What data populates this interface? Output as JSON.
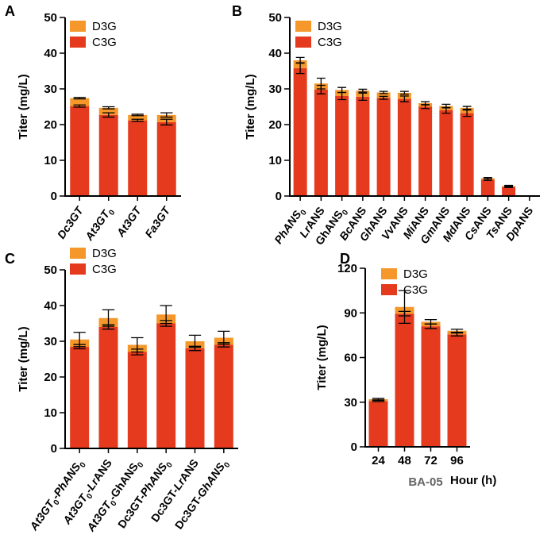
{
  "colors": {
    "c3g": "#E63A1E",
    "d3g": "#F5972A",
    "axis": "#000000"
  },
  "legend": {
    "d3g": "D3G",
    "c3g": "C3G"
  },
  "chart_data": [
    {
      "panel": "A",
      "type": "bar",
      "stacked": true,
      "ylabel": "Titer (mg/L)",
      "ylim": [
        0,
        50
      ],
      "yticks": [
        "0",
        "10",
        "20",
        "30",
        "40",
        "50"
      ],
      "legend_position": "top-left",
      "categories": [
        {
          "label": "Dc3GT",
          "parts": [
            {
              "t": "Dc3GT",
              "i": true
            }
          ]
        },
        {
          "label": "At3GT0",
          "parts": [
            {
              "t": "At3GT",
              "i": true
            },
            {
              "t": "0",
              "sub": true
            }
          ]
        },
        {
          "label": "At3GT",
          "parts": [
            {
              "t": "At3GT",
              "i": true
            }
          ]
        },
        {
          "label": "Fa3GT",
          "parts": [
            {
              "t": "Fa3GT",
              "i": true
            }
          ]
        }
      ],
      "series": [
        {
          "name": "C3G",
          "values": [
            25.2,
            22.7,
            21.2,
            20.7
          ],
          "err": [
            0.3,
            0.6,
            0.3,
            0.8
          ]
        },
        {
          "name": "D3G",
          "values": [
            2.2,
            2.0,
            1.5,
            2.0
          ],
          "err": [
            0.2,
            0.3,
            0.2,
            0.6
          ]
        }
      ]
    },
    {
      "panel": "B",
      "type": "bar",
      "stacked": true,
      "ylabel": "Titer (mg/L)",
      "ylim": [
        0,
        50
      ],
      "yticks": [
        "0",
        "10",
        "20",
        "30",
        "40",
        "50"
      ],
      "legend_position": "top-left",
      "categories": [
        {
          "label": "PhANS0",
          "parts": [
            {
              "t": "PhANS",
              "i": true
            },
            {
              "t": "0",
              "sub": true
            }
          ]
        },
        {
          "label": "LrANS",
          "parts": [
            {
              "t": "Lr",
              "i": true
            },
            {
              "t": "ANS"
            }
          ]
        },
        {
          "label": "GhANS0",
          "parts": [
            {
              "t": "GhANS"
            },
            {
              "t": "0",
              "sub": true
            }
          ]
        },
        {
          "label": "BcANS",
          "parts": [
            {
              "t": "Bc",
              "i": true
            },
            {
              "t": "ANS"
            }
          ]
        },
        {
          "label": "GhANS",
          "parts": [
            {
              "t": "Gh",
              "i": true
            },
            {
              "t": "ANS"
            }
          ]
        },
        {
          "label": "VvANS",
          "parts": [
            {
              "t": "Vv",
              "i": true
            },
            {
              "t": "ANS"
            }
          ]
        },
        {
          "label": "MiANS",
          "parts": [
            {
              "t": "Mi",
              "i": true
            },
            {
              "t": "ANS"
            }
          ]
        },
        {
          "label": "GmANS",
          "parts": [
            {
              "t": "Gm",
              "i": true
            },
            {
              "t": "ANS"
            }
          ]
        },
        {
          "label": "MdANS",
          "parts": [
            {
              "t": "Md",
              "i": true
            },
            {
              "t": "ANS"
            }
          ]
        },
        {
          "label": "CsANS",
          "parts": [
            {
              "t": "Cs",
              "i": true
            },
            {
              "t": "ANS"
            }
          ]
        },
        {
          "label": "TsANS",
          "parts": [
            {
              "t": "Ts",
              "i": true
            },
            {
              "t": "ANS"
            }
          ]
        },
        {
          "label": "DpANS",
          "parts": [
            {
              "t": "Dp",
              "i": true
            },
            {
              "t": "ANS"
            }
          ]
        }
      ],
      "series": [
        {
          "name": "C3G",
          "values": [
            35.8,
            29.8,
            28.0,
            27.8,
            27.5,
            27.2,
            25.0,
            24.0,
            23.2,
            4.6,
            2.6,
            0
          ],
          "err": [
            1.5,
            1.2,
            1.0,
            1.0,
            0.4,
            0.8,
            0.5,
            0.8,
            0.9,
            0.2,
            0.2,
            0
          ]
        },
        {
          "name": "D3G",
          "values": [
            2.2,
            1.7,
            1.7,
            1.7,
            1.5,
            1.7,
            1.0,
            1.2,
            1.5,
            0.4,
            0.2,
            0
          ],
          "err": [
            0.8,
            1.5,
            0.7,
            0.4,
            0.3,
            0.4,
            0.4,
            0.5,
            0.4,
            0.2,
            0.2,
            0
          ]
        }
      ]
    },
    {
      "panel": "C",
      "type": "bar",
      "stacked": true,
      "ylabel": "Titer (mg/L)",
      "ylim": [
        0,
        50
      ],
      "yticks": [
        "0",
        "10",
        "20",
        "30",
        "40",
        "50"
      ],
      "legend_position": "top-left",
      "categories": [
        {
          "label": "At3GT0-PhANS0",
          "parts": [
            {
              "t": "At3GT",
              "i": true
            },
            {
              "t": "0",
              "sub": true
            },
            {
              "t": "-"
            },
            {
              "t": "PhANS",
              "i": true
            },
            {
              "t": "0",
              "sub": true
            }
          ]
        },
        {
          "label": "At3GT0-LrANS",
          "parts": [
            {
              "t": "At3GT",
              "i": true
            },
            {
              "t": "0",
              "sub": true
            },
            {
              "t": "-"
            },
            {
              "t": "Lr",
              "i": true
            },
            {
              "t": "ANS"
            }
          ]
        },
        {
          "label": "At3GT0-GhANS0",
          "parts": [
            {
              "t": "At3GT",
              "i": true
            },
            {
              "t": "0",
              "sub": true
            },
            {
              "t": "-GhANS"
            },
            {
              "t": "0",
              "sub": true
            }
          ]
        },
        {
          "label": "Dc3GT-PhANS0",
          "parts": [
            {
              "t": "Dc3GT-"
            },
            {
              "t": "PhANS",
              "i": true
            },
            {
              "t": "0",
              "sub": true
            }
          ]
        },
        {
          "label": "Dc3GT-LrANS",
          "parts": [
            {
              "t": "Dc3GT-"
            },
            {
              "t": "Lr",
              "i": true
            },
            {
              "t": "ANS"
            }
          ]
        },
        {
          "label": "Dc3GT-GhANS0",
          "parts": [
            {
              "t": "Dc3GT-"
            },
            {
              "t": "GhANS",
              "i": true
            },
            {
              "t": "0",
              "sub": true
            }
          ]
        }
      ],
      "series": [
        {
          "name": "C3G",
          "values": [
            28.5,
            34.0,
            27.0,
            35.0,
            28.0,
            29.0
          ],
          "err": [
            0.6,
            0.6,
            0.8,
            0.8,
            0.6,
            0.6
          ]
        },
        {
          "name": "D3G",
          "values": [
            2.0,
            2.5,
            2.0,
            2.5,
            2.0,
            2.0
          ],
          "err": [
            2.0,
            2.3,
            2.0,
            2.5,
            1.7,
            1.8
          ]
        }
      ]
    },
    {
      "panel": "D",
      "type": "bar",
      "stacked": true,
      "ylabel": "Titer (mg/L)",
      "xlabel": "Hour (h)",
      "strain_label": "BA-05",
      "ylim": [
        0,
        120
      ],
      "yticks": [
        "0",
        "30",
        "60",
        "90",
        "120"
      ],
      "legend_position": "top-right",
      "categories": [
        {
          "label": "24",
          "parts": [
            {
              "t": "24"
            }
          ]
        },
        {
          "label": "48",
          "parts": [
            {
              "t": "48"
            }
          ]
        },
        {
          "label": "72",
          "parts": [
            {
              "t": "72"
            }
          ]
        },
        {
          "label": "96",
          "parts": [
            {
              "t": "96"
            }
          ]
        }
      ],
      "series": [
        {
          "name": "C3G",
          "values": [
            30.8,
            89.5,
            81.0,
            75.5
          ],
          "err": [
            0.4,
            1.5,
            1.5,
            1.0
          ]
        },
        {
          "name": "D3G",
          "values": [
            1.2,
            4.5,
            3.0,
            2.5
          ],
          "err": [
            0.5,
            11.0,
            1.5,
            1.0
          ]
        }
      ]
    }
  ]
}
